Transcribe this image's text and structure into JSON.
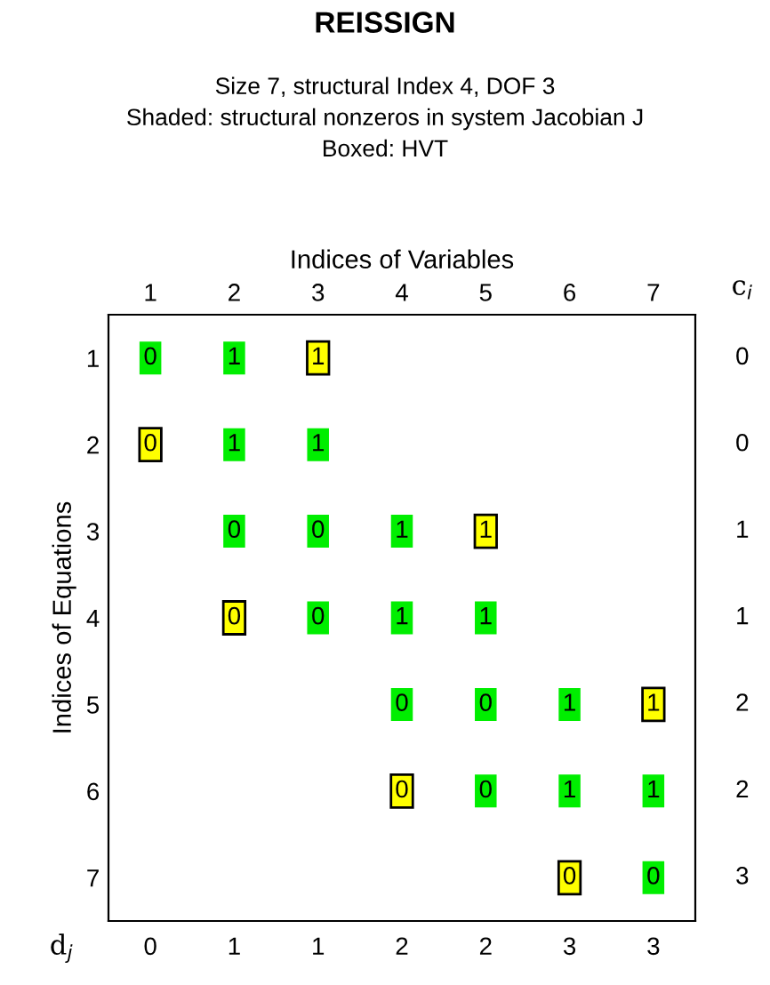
{
  "chart_data": {
    "type": "heatmap",
    "title": "REISSIGN",
    "subtitle": "Size 7, structural Index 4, DOF 3\nShaded: structural nonzeros in system Jacobian J\nBoxed: HVT",
    "xlabel": "Indices of Variables",
    "ylabel": "Indices of Equations",
    "categories": [
      "1",
      "2",
      "3",
      "4",
      "5",
      "6",
      "7"
    ],
    "y_categories": [
      "1",
      "2",
      "3",
      "4",
      "5",
      "6",
      "7"
    ],
    "y2_categories": [
      "0",
      "0",
      "1",
      "1",
      "2",
      "2",
      "3"
    ],
    "annotations": [
      "c$_{i}$",
      "d$_{j}$",
      "0",
      "1",
      "1",
      "2",
      "2",
      "3",
      "3"
    ],
    "data_labels": true,
    "cells": [
      [
        0,
        1,
        1,
        null,
        null,
        null,
        null
      ],
      [
        0,
        1,
        1,
        null,
        null,
        null,
        null
      ],
      [
        null,
        0,
        0,
        1,
        1,
        null,
        null
      ],
      [
        null,
        0,
        0,
        1,
        1,
        null,
        null
      ],
      [
        null,
        null,
        null,
        0,
        0,
        1,
        1
      ],
      [
        null,
        null,
        null,
        0,
        0,
        1,
        1
      ],
      [
        null,
        null,
        null,
        null,
        null,
        0,
        0
      ]
    ],
    "colors": [
      [
        "#00ee00",
        "#00ee00",
        "#ffff00",
        null,
        null,
        null,
        null
      ],
      [
        "#ffff00",
        "#00ee00",
        "#00ee00",
        null,
        null,
        null,
        null
      ],
      [
        null,
        "#00ee00",
        "#00ee00",
        "#00ee00",
        "#ffff00",
        null,
        null
      ],
      [
        null,
        "#ffff00",
        "#00ee00",
        "#00ee00",
        "#00ee00",
        null,
        null
      ],
      [
        null,
        null,
        null,
        "#00ee00",
        "#00ee00",
        "#00ee00",
        "#ffff00"
      ],
      [
        null,
        null,
        null,
        "#ffff00",
        "#00ee00",
        "#00ee00",
        "#00ee00"
      ],
      [
        null,
        null,
        null,
        null,
        null,
        "#ffff00",
        "#00ee00"
      ]
    ],
    "grid": false
  }
}
